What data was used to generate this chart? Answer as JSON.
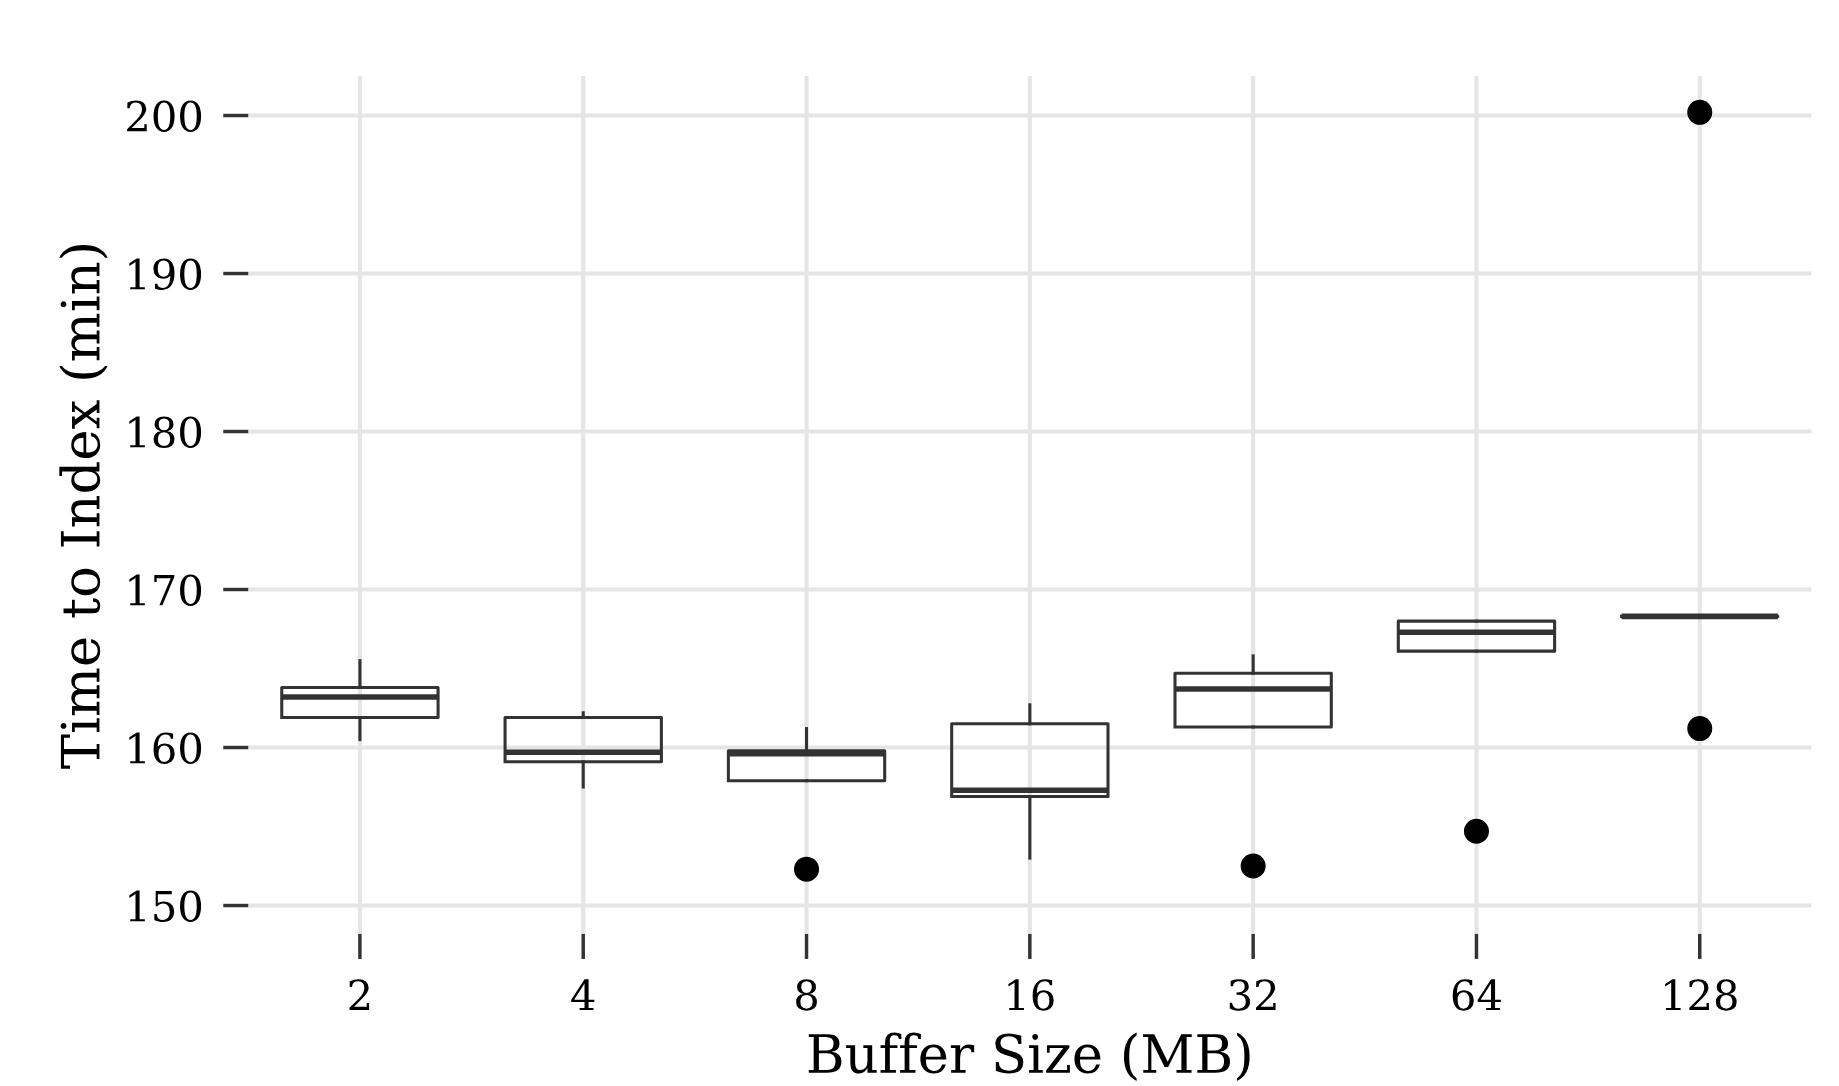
{
  "chart_data": {
    "type": "box",
    "xlabel": "Buffer Size (MB)",
    "ylabel": "Time to Index (min)",
    "categories": [
      "2",
      "4",
      "8",
      "16",
      "32",
      "64",
      "128"
    ],
    "boxes": [
      {
        "low": 160.5,
        "q1": 161.9,
        "median": 163.2,
        "q3": 163.8,
        "high": 165.5
      },
      {
        "low": 157.5,
        "q1": 159.1,
        "median": 159.7,
        "q3": 161.9,
        "high": 162.2
      },
      {
        "low": 157.9,
        "q1": 157.9,
        "median": 159.6,
        "q3": 159.8,
        "high": 161.2,
        "outliers": [
          152.3
        ]
      },
      {
        "low": 153.0,
        "q1": 156.9,
        "median": 157.3,
        "q3": 161.5,
        "high": 162.7
      },
      {
        "low": 161.3,
        "q1": 161.3,
        "median": 163.7,
        "q3": 164.7,
        "high": 165.8,
        "outliers": [
          152.5
        ]
      },
      {
        "low": 166.1,
        "q1": 166.1,
        "median": 167.3,
        "q3": 168.0,
        "high": 168.0,
        "outliers": [
          154.7
        ]
      },
      {
        "low": 168.3,
        "q1": 168.3,
        "median": 168.3,
        "q3": 168.3,
        "high": 168.3,
        "outliers": [
          200.2,
          161.2
        ]
      }
    ],
    "color": "#333333",
    "ylim": [
      148.2,
      202.5
    ],
    "yticks": [
      150,
      160,
      170,
      180,
      190,
      200
    ],
    "grid": true
  }
}
